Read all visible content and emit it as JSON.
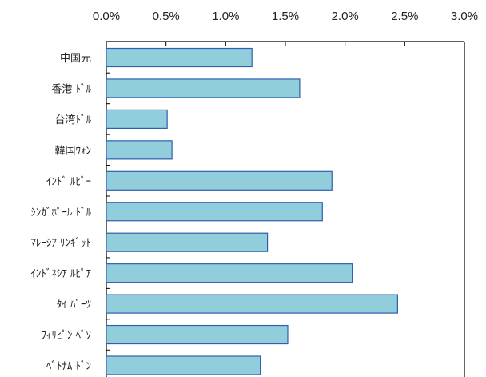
{
  "chart_data": {
    "type": "bar",
    "orientation": "horizontal",
    "categories": [
      "中国元",
      "香港ドル",
      "台湾ドル",
      "韓国ウォン",
      "インドルピー",
      "シンガポールドル",
      "マレーシアリンギット",
      "インドネシアルピア",
      "タイバーツ",
      "フィリピンペソ",
      "ベトナムドン"
    ],
    "category_labels": [
      "中国元",
      "香港 ﾄﾞﾙ",
      "台湾ﾄﾞﾙ",
      "韓国ｳｫﾝ",
      "ｲﾝﾄﾞ ﾙﾋﾟｰ",
      "ｼﾝｶﾞﾎﾟｰﾙ ﾄﾞﾙ",
      "ﾏﾚｰｼｱ ﾘﾝｷﾞｯﾄ",
      "ｲﾝﾄﾞﾈｼｱ ﾙﾋﾟｱ",
      "ﾀｲ ﾊﾞｰﾂ",
      "ﾌｨﾘﾋﾟﾝ ﾍﾟｿ",
      "ﾍﾞﾄﾅﾑ ﾄﾞﾝ"
    ],
    "values": [
      1.22,
      1.62,
      0.51,
      0.55,
      1.89,
      1.81,
      1.35,
      2.06,
      2.44,
      1.52,
      1.29
    ],
    "xlim": [
      0,
      3.0
    ],
    "x_ticks": [
      0,
      0.5,
      1.0,
      1.5,
      2.0,
      2.5,
      3.0
    ],
    "x_tick_labels": [
      "0.0%",
      "0.5%",
      "1.0%",
      "1.5%",
      "2.0%",
      "2.5%",
      "3.0%"
    ],
    "x_axis_position": "top",
    "title": "",
    "xlabel": "",
    "ylabel": "",
    "grid": false,
    "bar_color": "#92CDDC",
    "bar_edge_color": "#2E5FB0"
  }
}
